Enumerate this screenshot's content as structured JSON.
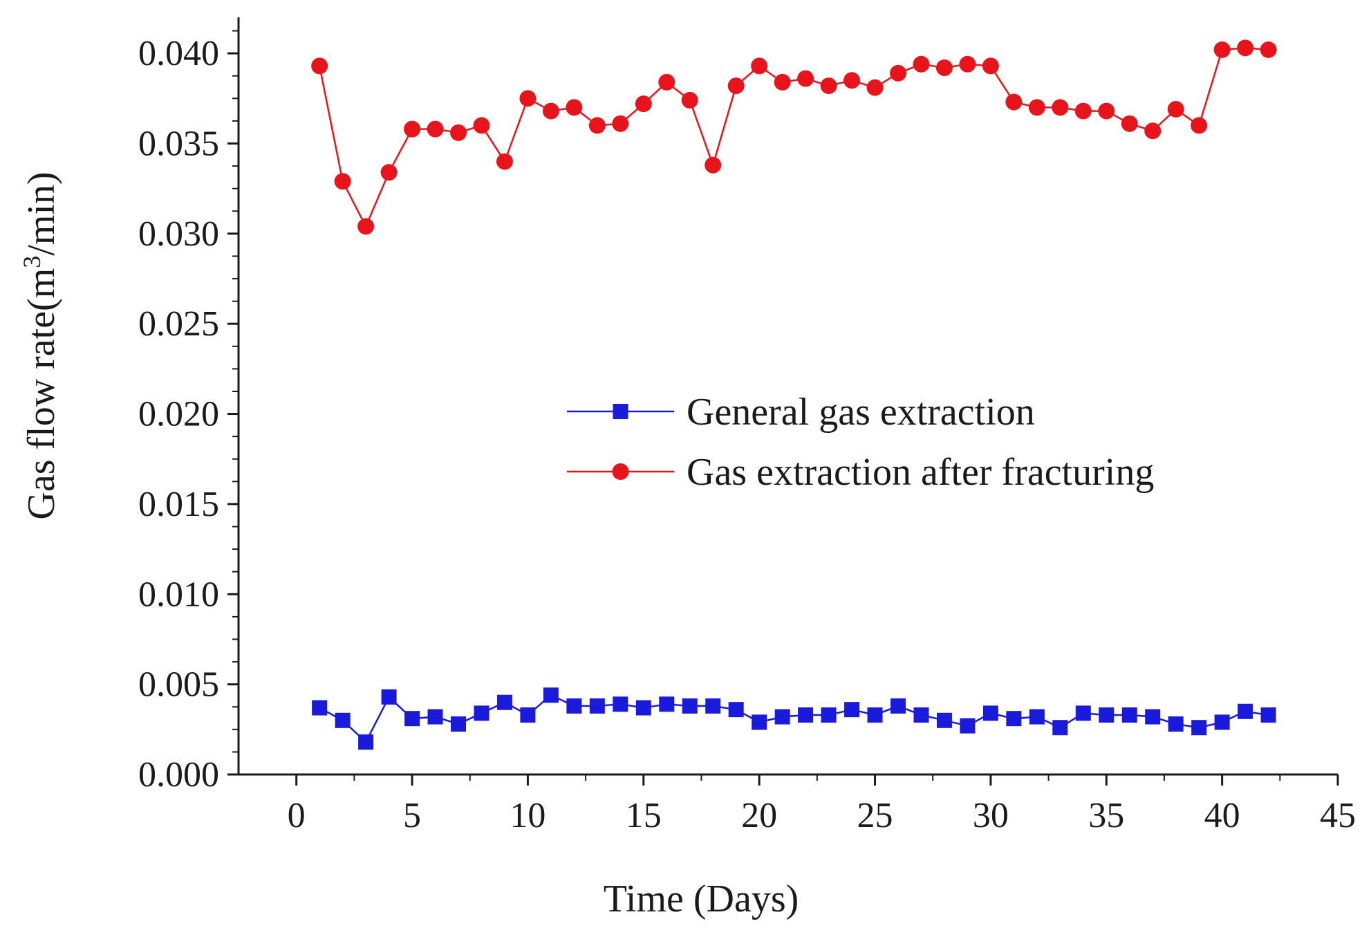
{
  "chart_data": {
    "type": "line",
    "title": "",
    "xlabel": "Time (Days)",
    "ylabel_main": "Gas flow rate(m",
    "ylabel_sup": "3",
    "ylabel_tail": "/min)",
    "xlim": [
      -2.5,
      45
    ],
    "ylim": [
      0.0,
      0.042
    ],
    "xticks": [
      0,
      5,
      10,
      15,
      20,
      25,
      30,
      35,
      40,
      45
    ],
    "xtick_labels": [
      "0",
      "5",
      "10",
      "15",
      "20",
      "25",
      "30",
      "35",
      "40",
      "45"
    ],
    "yticks": [
      0.0,
      0.005,
      0.01,
      0.015,
      0.02,
      0.025,
      0.03,
      0.035,
      0.04
    ],
    "ytick_labels": [
      "0.000",
      "0.005",
      "0.010",
      "0.015",
      "0.020",
      "0.025",
      "0.030",
      "0.035",
      "0.040"
    ],
    "grid": false,
    "legend_position": "center-right",
    "x": [
      1,
      2,
      3,
      4,
      5,
      6,
      7,
      8,
      9,
      10,
      11,
      12,
      13,
      14,
      15,
      16,
      17,
      18,
      19,
      20,
      21,
      22,
      23,
      24,
      25,
      26,
      27,
      28,
      29,
      30,
      31,
      32,
      33,
      34,
      35,
      36,
      37,
      38,
      39,
      40,
      41,
      42
    ],
    "series": [
      {
        "name": "General gas extraction",
        "color": "#1a1adb",
        "marker": "square",
        "values": [
          0.0037,
          0.003,
          0.0018,
          0.0043,
          0.0031,
          0.0032,
          0.0028,
          0.0034,
          0.004,
          0.0033,
          0.0044,
          0.0038,
          0.0038,
          0.0039,
          0.0037,
          0.0039,
          0.0038,
          0.0038,
          0.0036,
          0.0029,
          0.0032,
          0.0033,
          0.0033,
          0.0036,
          0.0033,
          0.0038,
          0.0033,
          0.003,
          0.0027,
          0.0034,
          0.0031,
          0.0032,
          0.0026,
          0.0034,
          0.0033,
          0.0033,
          0.0032,
          0.0028,
          0.0026,
          0.0029,
          0.0035,
          0.0033
        ]
      },
      {
        "name": "Gas extraction after fracturing",
        "color": "#e8141c",
        "marker": "circle",
        "values": [
          0.0393,
          0.0329,
          0.0304,
          0.0334,
          0.0358,
          0.0358,
          0.0356,
          0.036,
          0.034,
          0.0375,
          0.0368,
          0.037,
          0.036,
          0.0361,
          0.0372,
          0.0384,
          0.0374,
          0.0338,
          0.0382,
          0.0393,
          0.0384,
          0.0386,
          0.0382,
          0.0385,
          0.0381,
          0.0389,
          0.0394,
          0.0392,
          0.0394,
          0.0393,
          0.0373,
          0.037,
          0.037,
          0.0368,
          0.0368,
          0.0361,
          0.0357,
          0.0369,
          0.036,
          0.0402,
          0.0403,
          0.0402
        ]
      }
    ]
  }
}
